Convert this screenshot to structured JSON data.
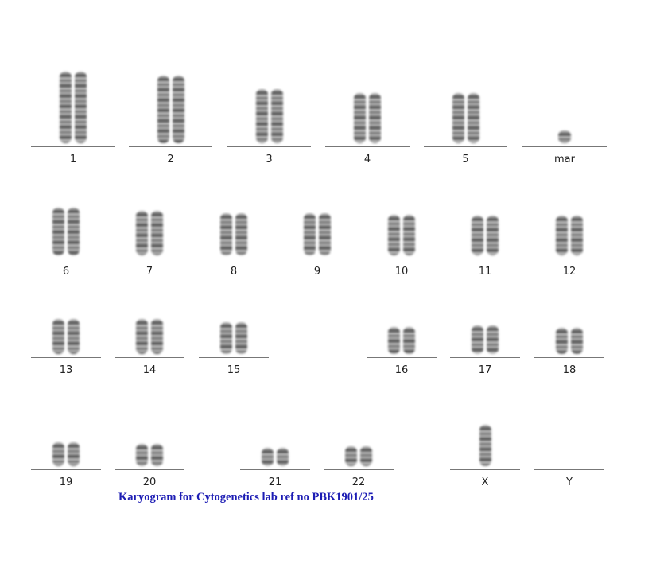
{
  "caption": "Karyogram for Cytogenetics lab ref no PBK1901/25",
  "chromosomes": [
    {
      "label": "1",
      "count": 2
    },
    {
      "label": "2",
      "count": 2
    },
    {
      "label": "3",
      "count": 2
    },
    {
      "label": "4",
      "count": 2
    },
    {
      "label": "5",
      "count": 2
    },
    {
      "label": "mar",
      "count": 1
    },
    {
      "label": "6",
      "count": 2
    },
    {
      "label": "7",
      "count": 2
    },
    {
      "label": "8",
      "count": 2
    },
    {
      "label": "9",
      "count": 2
    },
    {
      "label": "10",
      "count": 2
    },
    {
      "label": "11",
      "count": 2
    },
    {
      "label": "12",
      "count": 2
    },
    {
      "label": "13",
      "count": 2
    },
    {
      "label": "14",
      "count": 2
    },
    {
      "label": "15",
      "count": 2
    },
    {
      "label": "16",
      "count": 2
    },
    {
      "label": "17",
      "count": 2
    },
    {
      "label": "18",
      "count": 2
    },
    {
      "label": "19",
      "count": 2
    },
    {
      "label": "20",
      "count": 2
    },
    {
      "label": "21",
      "count": 2
    },
    {
      "label": "22",
      "count": 2
    },
    {
      "label": "X",
      "count": 1
    },
    {
      "label": "Y",
      "count": 0
    }
  ]
}
